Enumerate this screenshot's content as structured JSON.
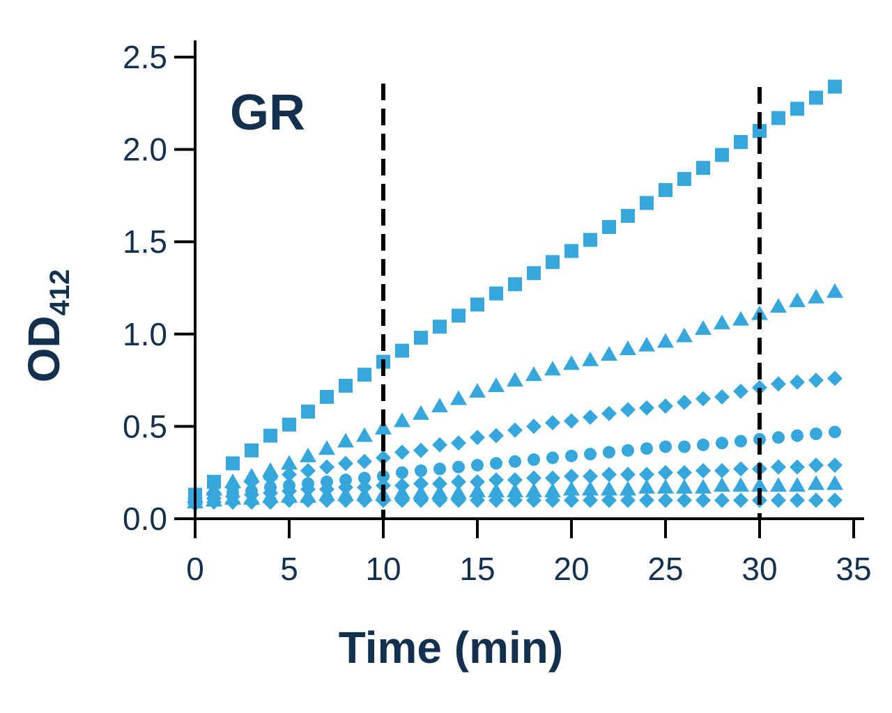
{
  "chart_data": {
    "type": "scatter",
    "panel_label": "GR",
    "xlabel": "Time (min)",
    "ylabel_main": "OD",
    "ylabel_sub": "412",
    "xlim": [
      0,
      35
    ],
    "ylim": [
      0,
      2.5
    ],
    "x_ticks": [
      0,
      5,
      10,
      15,
      20,
      25,
      30,
      35
    ],
    "y_ticks": [
      "0.0",
      "0.5",
      "1.0",
      "1.5",
      "2.0",
      "2.5"
    ],
    "reference_lines_x": [
      10,
      30
    ],
    "marker_color": "#35a7dc",
    "grid": false,
    "legend": "none",
    "x": [
      0,
      1,
      2,
      3,
      4,
      5,
      6,
      7,
      8,
      9,
      10,
      11,
      12,
      13,
      14,
      15,
      16,
      17,
      18,
      19,
      20,
      21,
      22,
      23,
      24,
      25,
      26,
      27,
      28,
      29,
      30,
      31,
      32,
      33,
      34
    ],
    "series": [
      {
        "marker": "square",
        "values": [
          0.13,
          0.2,
          0.3,
          0.37,
          0.45,
          0.51,
          0.58,
          0.66,
          0.72,
          0.78,
          0.85,
          0.91,
          0.98,
          1.04,
          1.1,
          1.16,
          1.22,
          1.27,
          1.33,
          1.39,
          1.45,
          1.51,
          1.58,
          1.64,
          1.71,
          1.78,
          1.84,
          1.9,
          1.97,
          2.04,
          2.1,
          2.17,
          2.22,
          2.28,
          2.34
        ]
      },
      {
        "marker": "triangle",
        "values": [
          0.12,
          0.16,
          0.2,
          0.23,
          0.26,
          0.3,
          0.34,
          0.38,
          0.42,
          0.45,
          0.49,
          0.53,
          0.57,
          0.61,
          0.65,
          0.69,
          0.72,
          0.75,
          0.78,
          0.81,
          0.84,
          0.86,
          0.89,
          0.92,
          0.94,
          0.96,
          0.99,
          1.03,
          1.06,
          1.08,
          1.11,
          1.15,
          1.18,
          1.2,
          1.23
        ]
      },
      {
        "marker": "diamond",
        "values": [
          0.11,
          0.14,
          0.17,
          0.2,
          0.22,
          0.24,
          0.26,
          0.28,
          0.3,
          0.31,
          0.33,
          0.36,
          0.37,
          0.4,
          0.41,
          0.44,
          0.45,
          0.48,
          0.5,
          0.52,
          0.53,
          0.55,
          0.57,
          0.59,
          0.6,
          0.61,
          0.63,
          0.65,
          0.66,
          0.69,
          0.71,
          0.73,
          0.74,
          0.75,
          0.76
        ]
      },
      {
        "marker": "circle",
        "values": [
          0.1,
          0.12,
          0.14,
          0.15,
          0.17,
          0.18,
          0.19,
          0.2,
          0.21,
          0.22,
          0.23,
          0.25,
          0.26,
          0.27,
          0.28,
          0.29,
          0.3,
          0.31,
          0.32,
          0.33,
          0.34,
          0.35,
          0.36,
          0.37,
          0.38,
          0.39,
          0.39,
          0.4,
          0.41,
          0.42,
          0.43,
          0.44,
          0.45,
          0.46,
          0.47
        ]
      },
      {
        "marker": "diamond",
        "values": [
          0.09,
          0.11,
          0.12,
          0.13,
          0.14,
          0.15,
          0.16,
          0.16,
          0.17,
          0.17,
          0.18,
          0.18,
          0.19,
          0.19,
          0.2,
          0.2,
          0.21,
          0.21,
          0.22,
          0.22,
          0.23,
          0.23,
          0.24,
          0.24,
          0.24,
          0.25,
          0.25,
          0.26,
          0.26,
          0.27,
          0.27,
          0.28,
          0.28,
          0.29,
          0.29
        ]
      },
      {
        "marker": "triangle",
        "values": [
          0.09,
          0.1,
          0.11,
          0.11,
          0.12,
          0.12,
          0.12,
          0.13,
          0.13,
          0.13,
          0.13,
          0.14,
          0.14,
          0.14,
          0.14,
          0.15,
          0.15,
          0.15,
          0.15,
          0.15,
          0.16,
          0.16,
          0.16,
          0.16,
          0.17,
          0.17,
          0.17,
          0.17,
          0.18,
          0.18,
          0.18,
          0.18,
          0.18,
          0.19,
          0.19
        ]
      },
      {
        "marker": "diamond",
        "values": [
          0.08,
          0.09,
          0.09,
          0.09,
          0.09,
          0.1,
          0.1,
          0.1,
          0.1,
          0.1,
          0.1,
          0.1,
          0.1,
          0.1,
          0.1,
          0.1,
          0.1,
          0.1,
          0.1,
          0.1,
          0.1,
          0.1,
          0.1,
          0.1,
          0.1,
          0.1,
          0.1,
          0.1,
          0.1,
          0.1,
          0.1,
          0.1,
          0.1,
          0.1,
          0.1
        ]
      }
    ]
  }
}
